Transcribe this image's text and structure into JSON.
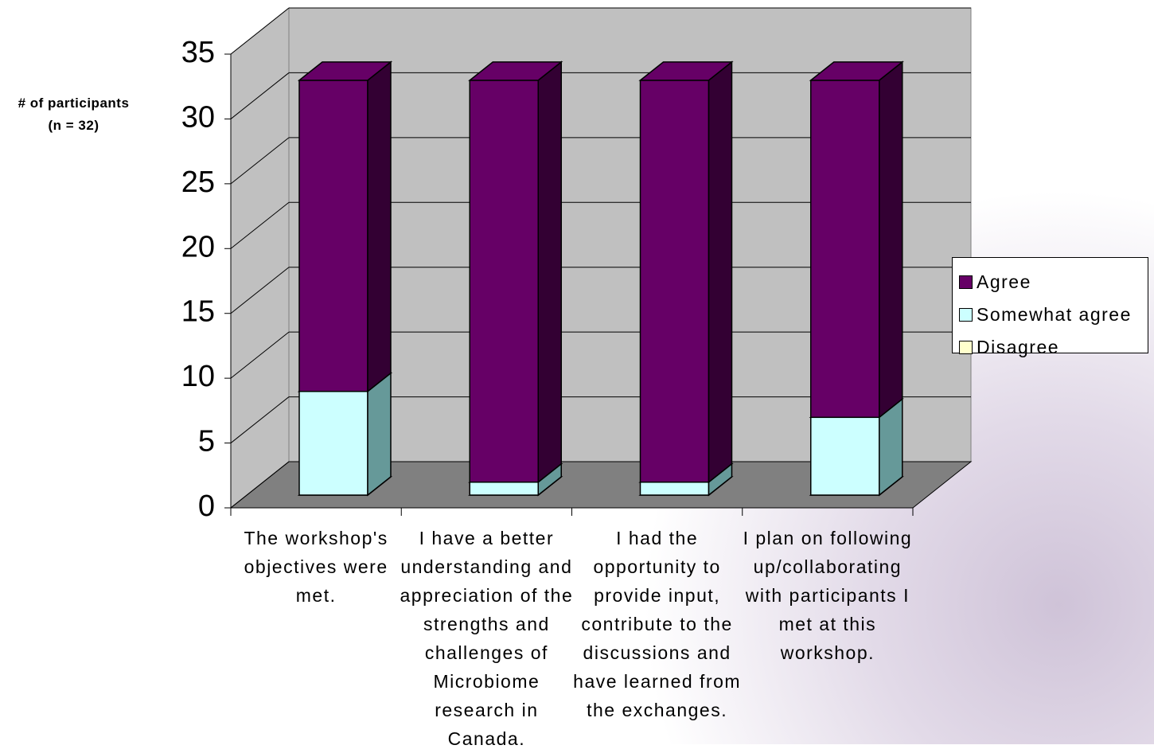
{
  "chart_data": {
    "type": "bar3d_stacked",
    "y_label": "# of participants\n(n = 32)",
    "categories": [
      "The workshop's objectives were met.",
      "I have a better understanding and appreciation of the strengths and challenges of Microbiome research in Canada.",
      "I had the opportunity to provide input, contribute to the discussions and have learned from the exchanges.",
      "I plan on following up/collaborating with participants I met at this workshop."
    ],
    "series": [
      {
        "name": "Agree",
        "color": "#660066",
        "side_color": "#330033",
        "values": [
          24,
          31,
          31,
          26
        ]
      },
      {
        "name": "Somewhat agree",
        "color": "#ccffff",
        "side_color": "#669999",
        "values": [
          8,
          1,
          1,
          6
        ]
      },
      {
        "name": "Disagree",
        "color": "#ffffcc",
        "side_color": "#999966",
        "values": [
          0,
          0,
          0,
          0
        ]
      }
    ],
    "ylim": [
      0,
      35
    ],
    "yticks": [
      0,
      5,
      10,
      15,
      20,
      25,
      30,
      35
    ],
    "grid": true
  }
}
